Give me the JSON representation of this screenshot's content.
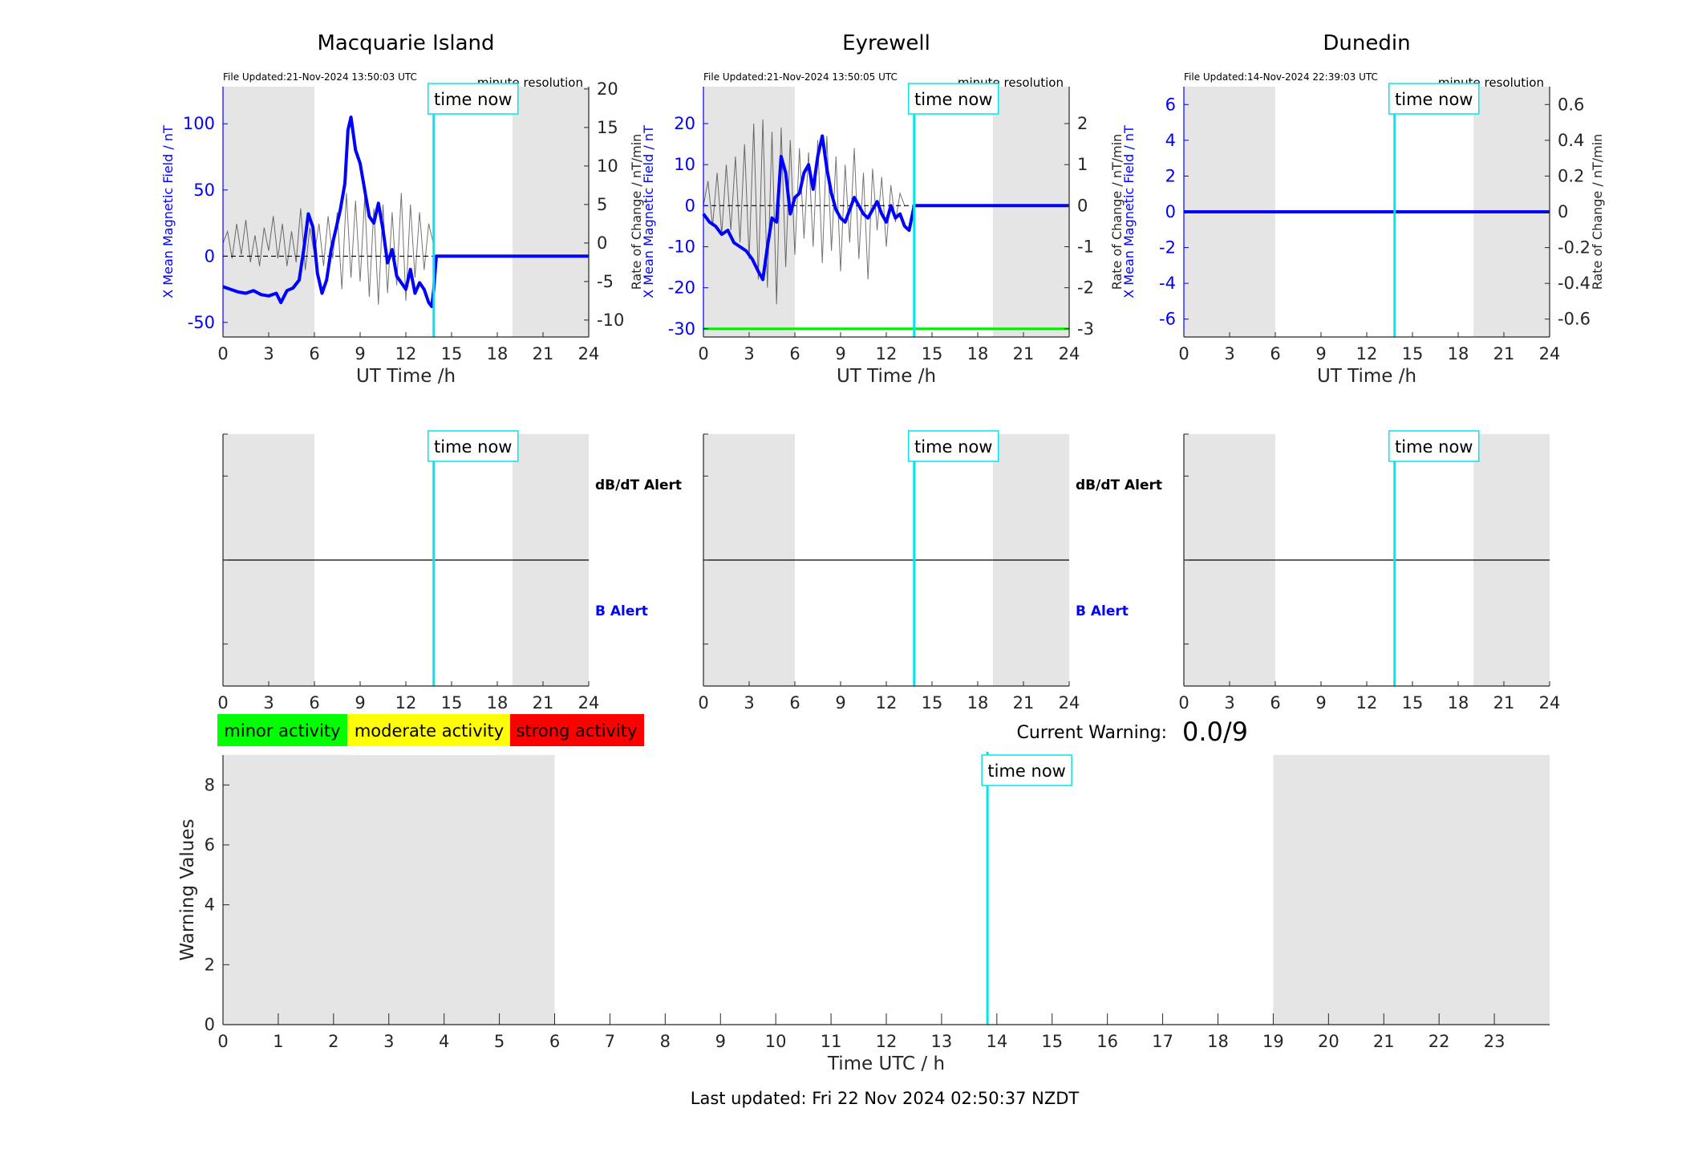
{
  "footer": {
    "last_updated": "Last updated: Fri 22 Nov 2024 02:50:37 NZDT"
  },
  "current_warning": {
    "label": "Current Warning:",
    "value": "0.0/9"
  },
  "legend_boxes": [
    {
      "label": "minor activity",
      "color": "#00ff00"
    },
    {
      "label": "moderate activity",
      "color": "#ffff00"
    },
    {
      "label": "strong activity",
      "color": "#ff0000"
    }
  ],
  "labels": {
    "time_now": "time now",
    "minute_resolution": "minute resolution",
    "dbdt_alert": "dB/dT Alert",
    "b_alert": "B Alert",
    "ut_xlabel": "UT Time /h"
  },
  "colors": {
    "magnetic_field": "#0000ff",
    "rate_of_change": "#000000",
    "now_line": "#00e5ee",
    "night_shade": "#e5e5e5",
    "threshold": "#00ee00"
  },
  "chart_data": [
    {
      "id": "mac-mag",
      "type": "line",
      "title": "Macquarie Island",
      "file_updated": "File Updated:21-Nov-2024 13:50:03 UTC",
      "xlabel": "UT Time /h",
      "ylabel_left": "X Mean Magnetic Field / nT",
      "ylabel_right": "Rate of Change / nT/min",
      "xlim": [
        0,
        24
      ],
      "xticks": [
        0,
        3,
        6,
        9,
        12,
        15,
        18,
        21,
        24
      ],
      "ylim_left": [
        -61,
        128
      ],
      "yticks_left": [
        -50,
        0,
        50,
        100
      ],
      "ylim_right": [
        -12.2,
        20.3
      ],
      "yticks_right": [
        -10,
        -5,
        0,
        5,
        10,
        15,
        20
      ],
      "night_shade": [
        [
          0,
          6
        ],
        [
          19,
          24
        ]
      ],
      "time_now": 13.83,
      "threshold": null,
      "series": [
        {
          "axis": "left",
          "style": "field",
          "x": [
            0,
            0.5,
            1,
            1.5,
            2,
            2.5,
            3,
            3.5,
            3.8,
            4.2,
            4.6,
            5.0,
            5.3,
            5.6,
            5.9,
            6.2,
            6.5,
            6.8,
            7.1,
            7.4,
            7.7,
            8.0,
            8.2,
            8.4,
            8.7,
            9.0,
            9.3,
            9.6,
            9.9,
            10.2,
            10.5,
            10.8,
            11.1,
            11.4,
            11.7,
            12.0,
            12.3,
            12.6,
            12.9,
            13.2,
            13.5,
            13.7,
            13.83,
            14,
            15,
            16,
            17,
            18,
            19,
            20,
            21,
            22,
            23,
            24
          ],
          "y": [
            -23,
            -25,
            -27,
            -28,
            -26,
            -29,
            -30,
            -28,
            -35,
            -26,
            -24,
            -18,
            5,
            32,
            22,
            -13,
            -28,
            -18,
            5,
            20,
            35,
            55,
            95,
            105,
            80,
            70,
            50,
            30,
            25,
            40,
            20,
            -5,
            5,
            -15,
            -20,
            -25,
            -10,
            -28,
            -20,
            -25,
            -35,
            -38,
            -25,
            0,
            0,
            0,
            0,
            0,
            0,
            0,
            0,
            0,
            0,
            0
          ]
        },
        {
          "axis": "right",
          "style": "rate",
          "x": [
            0,
            0.3,
            0.6,
            0.9,
            1.2,
            1.5,
            1.8,
            2.1,
            2.4,
            2.7,
            3.0,
            3.3,
            3.6,
            3.9,
            4.2,
            4.5,
            4.8,
            5.1,
            5.4,
            5.7,
            6.0,
            6.3,
            6.6,
            6.9,
            7.2,
            7.5,
            7.8,
            8.1,
            8.4,
            8.7,
            9.0,
            9.3,
            9.6,
            9.9,
            10.2,
            10.5,
            10.8,
            11.1,
            11.4,
            11.7,
            12.0,
            12.3,
            12.6,
            12.9,
            13.2,
            13.5,
            13.8
          ],
          "y": [
            0,
            1.5,
            -2,
            2.5,
            -1.5,
            3,
            -2.5,
            1,
            -3,
            2,
            -1,
            3.5,
            -2,
            2.5,
            -3,
            1.5,
            -2.5,
            4.5,
            -3.5,
            2,
            -1.5,
            2.5,
            -3,
            3.5,
            -2,
            4,
            -6,
            6.5,
            -4.5,
            5.5,
            -5,
            6,
            -7,
            4.5,
            -8,
            5,
            -6.5,
            4,
            -5.5,
            6.5,
            -7.5,
            5,
            -4.5,
            4,
            -3.5,
            2.5,
            0
          ]
        }
      ]
    },
    {
      "id": "eye-mag",
      "type": "line",
      "title": "Eyrewell",
      "file_updated": "File Updated:21-Nov-2024 13:50:05 UTC",
      "xlabel": "UT Time /h",
      "ylabel_left": "X Mean Magnetic Field / nT",
      "ylabel_right": "Rate of Change / nT/min",
      "xlim": [
        0,
        24
      ],
      "xticks": [
        0,
        3,
        6,
        9,
        12,
        15,
        18,
        21,
        24
      ],
      "ylim_left": [
        -32,
        29
      ],
      "yticks_left": [
        -30,
        -20,
        -10,
        0,
        10,
        20
      ],
      "ylim_right": [
        -3.2,
        2.9
      ],
      "yticks_right": [
        -3,
        -2,
        -1,
        0,
        1,
        2
      ],
      "night_shade": [
        [
          0,
          6
        ],
        [
          19,
          24
        ]
      ],
      "time_now": 13.83,
      "threshold": {
        "axis": "left",
        "value": -30
      },
      "series": [
        {
          "axis": "left",
          "style": "field",
          "x": [
            0,
            0.4,
            0.8,
            1.2,
            1.6,
            2.0,
            2.4,
            2.8,
            3.2,
            3.6,
            3.9,
            4.2,
            4.5,
            4.8,
            5.1,
            5.4,
            5.7,
            6.0,
            6.3,
            6.6,
            6.9,
            7.2,
            7.5,
            7.8,
            8.1,
            8.4,
            8.7,
            9.0,
            9.3,
            9.6,
            9.9,
            10.2,
            10.5,
            10.8,
            11.1,
            11.4,
            11.7,
            12.0,
            12.3,
            12.6,
            12.9,
            13.2,
            13.5,
            13.83,
            14,
            15,
            16,
            17,
            18,
            19,
            20,
            21,
            22,
            23,
            24
          ],
          "y": [
            -2,
            -4,
            -5,
            -7,
            -6,
            -9,
            -10,
            -11,
            -13,
            -16,
            -18,
            -10,
            -3,
            -4,
            12,
            8,
            -2,
            2,
            3,
            8,
            10,
            4,
            12,
            17,
            9,
            3,
            -1,
            -3,
            -4,
            -1,
            2,
            0,
            -2,
            -3,
            -1,
            1,
            -2,
            -4,
            0,
            -3,
            -2,
            -5,
            -6,
            0,
            0,
            0,
            0,
            0,
            0,
            0,
            0,
            0,
            0,
            0,
            0
          ]
        },
        {
          "axis": "right",
          "style": "rate",
          "x": [
            0,
            0.3,
            0.6,
            0.9,
            1.2,
            1.5,
            1.8,
            2.1,
            2.4,
            2.7,
            3.0,
            3.3,
            3.6,
            3.9,
            4.2,
            4.5,
            4.8,
            5.1,
            5.4,
            5.7,
            6.0,
            6.3,
            6.6,
            6.9,
            7.2,
            7.5,
            7.8,
            8.1,
            8.4,
            8.7,
            9.0,
            9.3,
            9.6,
            9.9,
            10.2,
            10.5,
            10.8,
            11.1,
            11.4,
            11.7,
            12.0,
            12.3,
            12.6,
            12.9,
            13.2
          ],
          "y": [
            0,
            0.6,
            -0.5,
            0.8,
            -0.7,
            1.0,
            -0.6,
            1.2,
            -0.9,
            1.5,
            -1.3,
            2.0,
            -1.8,
            2.1,
            -2.0,
            1.8,
            -2.4,
            1.9,
            -1.5,
            1.6,
            -1.2,
            1.4,
            -0.8,
            1.3,
            -1.0,
            1.6,
            -1.4,
            1.7,
            -1.1,
            1.2,
            -1.6,
            1.0,
            -0.9,
            1.4,
            -1.3,
            0.8,
            -1.8,
            0.9,
            -0.6,
            0.7,
            -1.0,
            0.5,
            -0.4,
            0.3,
            0
          ]
        }
      ]
    },
    {
      "id": "dun-mag",
      "type": "line",
      "title": "Dunedin",
      "file_updated": "File Updated:14-Nov-2024 22:39:03 UTC",
      "xlabel": "UT Time /h",
      "ylabel_left": "X Mean Magnetic Field / nT",
      "ylabel_right": "Rate of Change / nT/min",
      "xlim": [
        0,
        24
      ],
      "xticks": [
        0,
        3,
        6,
        9,
        12,
        15,
        18,
        21,
        24
      ],
      "ylim_left": [
        -7,
        7
      ],
      "yticks_left": [
        -6,
        -4,
        -2,
        0,
        2,
        4,
        6
      ],
      "ylim_right": [
        -0.7,
        0.7
      ],
      "yticks_right": [
        -0.6,
        -0.4,
        -0.2,
        0,
        0.2,
        0.4,
        0.6
      ],
      "night_shade": [
        [
          0,
          6
        ],
        [
          19,
          24
        ]
      ],
      "time_now": 13.83,
      "threshold": null,
      "series": [
        {
          "axis": "left",
          "style": "field",
          "x": [
            0,
            24
          ],
          "y": [
            0,
            0
          ]
        }
      ]
    },
    {
      "id": "mac-alert",
      "type": "line",
      "xlim": [
        0,
        24
      ],
      "xticks": [
        0,
        3,
        6,
        9,
        12,
        15,
        18,
        21,
        24
      ],
      "night_shade": [
        [
          0,
          6
        ],
        [
          19,
          24
        ]
      ],
      "time_now": 13.83,
      "upper_label": "dB/dT Alert",
      "lower_label": "B Alert"
    },
    {
      "id": "eye-alert",
      "type": "line",
      "xlim": [
        0,
        24
      ],
      "xticks": [
        0,
        3,
        6,
        9,
        12,
        15,
        18,
        21,
        24
      ],
      "night_shade": [
        [
          0,
          6
        ],
        [
          19,
          24
        ]
      ],
      "time_now": 13.83,
      "upper_label": "dB/dT Alert",
      "lower_label": "B Alert"
    },
    {
      "id": "dun-alert",
      "type": "line",
      "xlim": [
        0,
        24
      ],
      "xticks": [
        0,
        3,
        6,
        9,
        12,
        15,
        18,
        21,
        24
      ],
      "night_shade": [
        [
          0,
          6
        ],
        [
          19,
          24
        ]
      ],
      "time_now": 13.83,
      "upper_label": "",
      "lower_label": ""
    },
    {
      "id": "warning",
      "type": "line",
      "xlabel": "Time UTC / h",
      "ylabel": "Warning Values",
      "xlim": [
        0,
        24
      ],
      "xticks": [
        0,
        1,
        2,
        3,
        4,
        5,
        6,
        7,
        8,
        9,
        10,
        11,
        12,
        13,
        14,
        15,
        16,
        17,
        18,
        19,
        20,
        21,
        22,
        23
      ],
      "ylim": [
        0,
        9
      ],
      "yticks": [
        0,
        2,
        4,
        6,
        8
      ],
      "night_shade": [
        [
          0,
          6
        ],
        [
          19,
          24
        ]
      ],
      "time_now": 13.83,
      "series": []
    }
  ]
}
